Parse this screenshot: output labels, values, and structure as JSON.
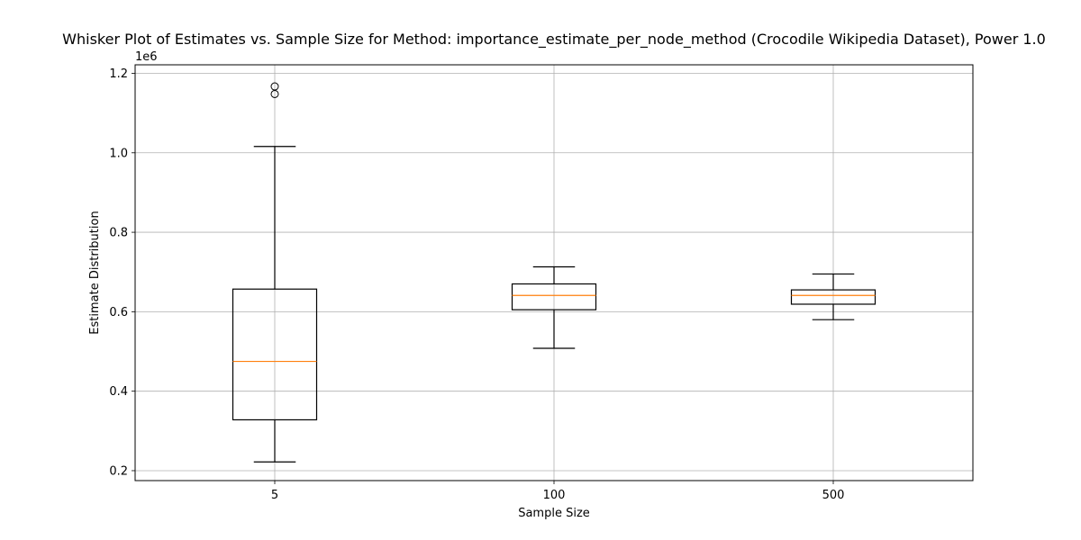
{
  "chart_data": {
    "type": "box",
    "title": "Whisker Plot of Estimates vs. Sample Size for Method: importance_estimate_per_node_method (Crocodile Wikipedia Dataset), Power 1.0",
    "xlabel": "Sample Size",
    "ylabel": "Estimate Distribution",
    "y_offset_label": "1e6",
    "ylim": [
      0.175,
      1.2215
    ],
    "yticks": [
      0.2,
      0.4,
      0.6,
      0.8,
      1.0,
      1.2
    ],
    "ytick_labels": [
      "0.2",
      "0.4",
      "0.6",
      "0.8",
      "1.0",
      "1.2"
    ],
    "grid": true,
    "categories": [
      "5",
      "100",
      "500"
    ],
    "boxes": [
      {
        "category": "5",
        "whisker_low": 0.222,
        "q1": 0.328,
        "median": 0.475,
        "q3": 0.657,
        "whisker_high": 1.016,
        "outliers": [
          1.148,
          1.167
        ]
      },
      {
        "category": "100",
        "whisker_low": 0.508,
        "q1": 0.605,
        "median": 0.641,
        "q3": 0.67,
        "whisker_high": 0.713,
        "outliers": []
      },
      {
        "category": "500",
        "whisker_low": 0.58,
        "q1": 0.619,
        "median": 0.641,
        "q3": 0.655,
        "whisker_high": 0.695,
        "outliers": []
      }
    ],
    "colors": {
      "box": "#000000",
      "median": "#ff7f0e",
      "grid": "#b0b0b0"
    }
  }
}
